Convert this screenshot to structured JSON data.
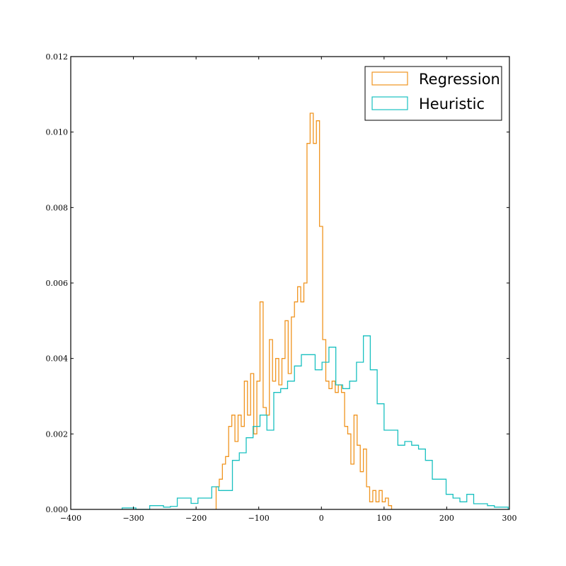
{
  "chart_data": {
    "type": "histogram",
    "xlim": [
      -400,
      300
    ],
    "ylim": [
      0,
      0.012
    ],
    "x_ticks": [
      -400,
      -300,
      -200,
      -100,
      0,
      100,
      200,
      300
    ],
    "x_tick_labels": [
      "−400",
      "−300",
      "−200",
      "−100",
      "0",
      "100",
      "200",
      "300"
    ],
    "y_ticks": [
      0,
      0.002,
      0.004,
      0.006,
      0.008,
      0.01,
      0.012
    ],
    "y_tick_labels": [
      "0.000",
      "0.002",
      "0.004",
      "0.006",
      "0.008",
      "0.010",
      "0.012"
    ],
    "grid": false,
    "legend_position": "top-right",
    "series": [
      {
        "name": "Regression",
        "color": "#f0941f",
        "bin_edges": [
          -168,
          -163,
          -158,
          -153,
          -148,
          -143,
          -138,
          -133,
          -128,
          -123,
          -118,
          -113,
          -108,
          -103,
          -98,
          -93,
          -88,
          -83,
          -78,
          -73,
          -68,
          -63,
          -58,
          -53,
          -48,
          -43,
          -38,
          -33,
          -28,
          -23,
          -18,
          -13,
          -8,
          -3,
          2,
          7,
          12,
          17,
          22,
          27,
          32,
          37,
          42,
          47,
          52,
          57,
          62,
          67,
          72,
          77,
          82,
          87,
          92,
          97,
          102,
          107,
          112
        ],
        "counts": [
          0.0006,
          0.0008,
          0.0012,
          0.0014,
          0.0022,
          0.0025,
          0.0018,
          0.0025,
          0.0022,
          0.0034,
          0.0025,
          0.0036,
          0.002,
          0.0034,
          0.0055,
          0.0027,
          0.0025,
          0.0045,
          0.0034,
          0.004,
          0.0033,
          0.004,
          0.005,
          0.0036,
          0.0051,
          0.0055,
          0.0059,
          0.0055,
          0.006,
          0.0097,
          0.0105,
          0.0097,
          0.0103,
          0.0075,
          0.0045,
          0.0034,
          0.0032,
          0.0034,
          0.0031,
          0.0033,
          0.0031,
          0.0022,
          0.002,
          0.0012,
          0.0025,
          0.0017,
          0.001,
          0.0016,
          0.0006,
          0.0002,
          0.0005,
          0.0002,
          0.0005,
          0.0002,
          0.0003,
          0.0001
        ]
      },
      {
        "name": "Heuristic",
        "color": "#19c0c0",
        "bin_edges": [
          -318,
          -307,
          -296,
          -285,
          -274,
          -263,
          -252,
          -241,
          -230,
          -219,
          -208,
          -197,
          -186,
          -175,
          -164,
          -153,
          -142,
          -131,
          -120,
          -109,
          -98,
          -87,
          -76,
          -65,
          -54,
          -43,
          -32,
          -21,
          -10,
          1,
          12,
          23,
          34,
          45,
          56,
          67,
          78,
          89,
          100,
          111,
          122,
          133,
          144,
          155,
          166,
          177,
          188,
          199,
          210,
          221,
          232,
          243,
          254,
          265,
          276,
          287,
          298
        ],
        "counts": [
          4e-05,
          4e-05,
          0.0,
          0.0,
          0.0001,
          0.0001,
          6e-05,
          8e-05,
          0.0003,
          0.0003,
          0.00016,
          0.0003,
          0.0003,
          0.0006,
          0.0005,
          0.0005,
          0.0013,
          0.0015,
          0.0019,
          0.0022,
          0.0025,
          0.0021,
          0.0031,
          0.0032,
          0.0034,
          0.0038,
          0.0041,
          0.0041,
          0.0037,
          0.0039,
          0.0043,
          0.0033,
          0.0032,
          0.0034,
          0.0039,
          0.0046,
          0.0037,
          0.0028,
          0.0021,
          0.0021,
          0.0017,
          0.0018,
          0.0017,
          0.0016,
          0.0013,
          0.0008,
          0.0008,
          0.0004,
          0.0003,
          0.0002,
          0.0004,
          0.00015,
          0.00015,
          0.0001,
          6e-05,
          6e-05
        ]
      }
    ]
  }
}
